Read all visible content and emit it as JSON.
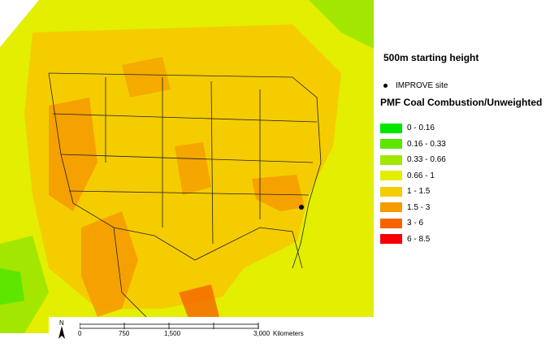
{
  "legend": {
    "starting_height": "500m starting height",
    "site_label": "IMPROVE site",
    "title": "PMF Coal Combustion/Unweighted",
    "classes": [
      {
        "label": "0 - 0.16",
        "color": "#00e600"
      },
      {
        "label": "0.16 - 0.33",
        "color": "#5ce600"
      },
      {
        "label": "0.33 - 0.66",
        "color": "#a3e600"
      },
      {
        "label": "0.66 - 1",
        "color": "#e3ee00"
      },
      {
        "label": "1 - 1.5",
        "color": "#f5cc00"
      },
      {
        "label": "1.5 - 3",
        "color": "#f59c00"
      },
      {
        "label": "3 - 6",
        "color": "#f56400"
      },
      {
        "label": "6 - 8.5",
        "color": "#f50000"
      }
    ]
  },
  "scale": {
    "ticks": [
      "0",
      "750",
      "1,500",
      "3,000"
    ],
    "unit": "Kilometers"
  },
  "site": {
    "name": "IMPROVE site"
  }
}
